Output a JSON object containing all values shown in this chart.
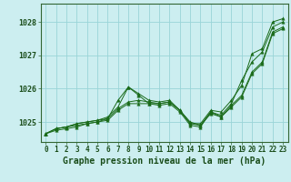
{
  "title": "Graphe pression niveau de la mer (hPa)",
  "bg_color": "#cceef0",
  "grid_color": "#99d4d8",
  "line_color": "#1a6b1a",
  "series": [
    [
      1024.65,
      1024.8,
      1024.85,
      1024.95,
      1025.0,
      1025.05,
      1025.15,
      1025.45,
      1026.05,
      1025.85,
      1025.65,
      1025.6,
      1025.65,
      1025.35,
      1024.95,
      1024.95,
      1025.35,
      1025.3,
      1025.65,
      1026.1,
      1027.05,
      1027.2,
      1028.0,
      1028.1
    ],
    [
      1024.65,
      1024.8,
      1024.85,
      1024.95,
      1025.0,
      1025.05,
      1025.1,
      1025.65,
      1026.05,
      1025.8,
      1025.55,
      1025.5,
      1025.55,
      1025.3,
      1024.9,
      1024.85,
      1025.3,
      1025.2,
      1025.55,
      1026.25,
      1026.8,
      1027.1,
      1027.85,
      1028.0
    ],
    [
      1024.65,
      1024.75,
      1024.8,
      1024.85,
      1024.95,
      1025.0,
      1025.05,
      1025.35,
      1025.55,
      1025.55,
      1025.55,
      1025.55,
      1025.6,
      1025.35,
      1025.0,
      1024.9,
      1025.3,
      1025.15,
      1025.5,
      1025.8,
      1026.5,
      1026.8,
      1027.7,
      1027.85
    ],
    [
      1024.65,
      1024.8,
      1024.85,
      1024.9,
      1024.95,
      1025.0,
      1025.1,
      1025.4,
      1025.6,
      1025.65,
      1025.6,
      1025.55,
      1025.6,
      1025.35,
      1024.95,
      1024.9,
      1025.25,
      1025.15,
      1025.45,
      1025.75,
      1026.45,
      1026.75,
      1027.65,
      1027.8
    ]
  ],
  "xlim": [
    -0.5,
    23.5
  ],
  "ylim": [
    1024.4,
    1028.55
  ],
  "yticks": [
    1025,
    1026,
    1027,
    1028
  ],
  "xticks": [
    0,
    1,
    2,
    3,
    4,
    5,
    6,
    7,
    8,
    9,
    10,
    11,
    12,
    13,
    14,
    15,
    16,
    17,
    18,
    19,
    20,
    21,
    22,
    23
  ],
  "xtick_labels": [
    "0",
    "1",
    "2",
    "3",
    "4",
    "5",
    "6",
    "7",
    "8",
    "9",
    "10",
    "11",
    "12",
    "13",
    "14",
    "15",
    "16",
    "17",
    "18",
    "19",
    "20",
    "21",
    "22",
    "23"
  ],
  "title_fontsize": 7,
  "tick_fontsize": 5.5
}
